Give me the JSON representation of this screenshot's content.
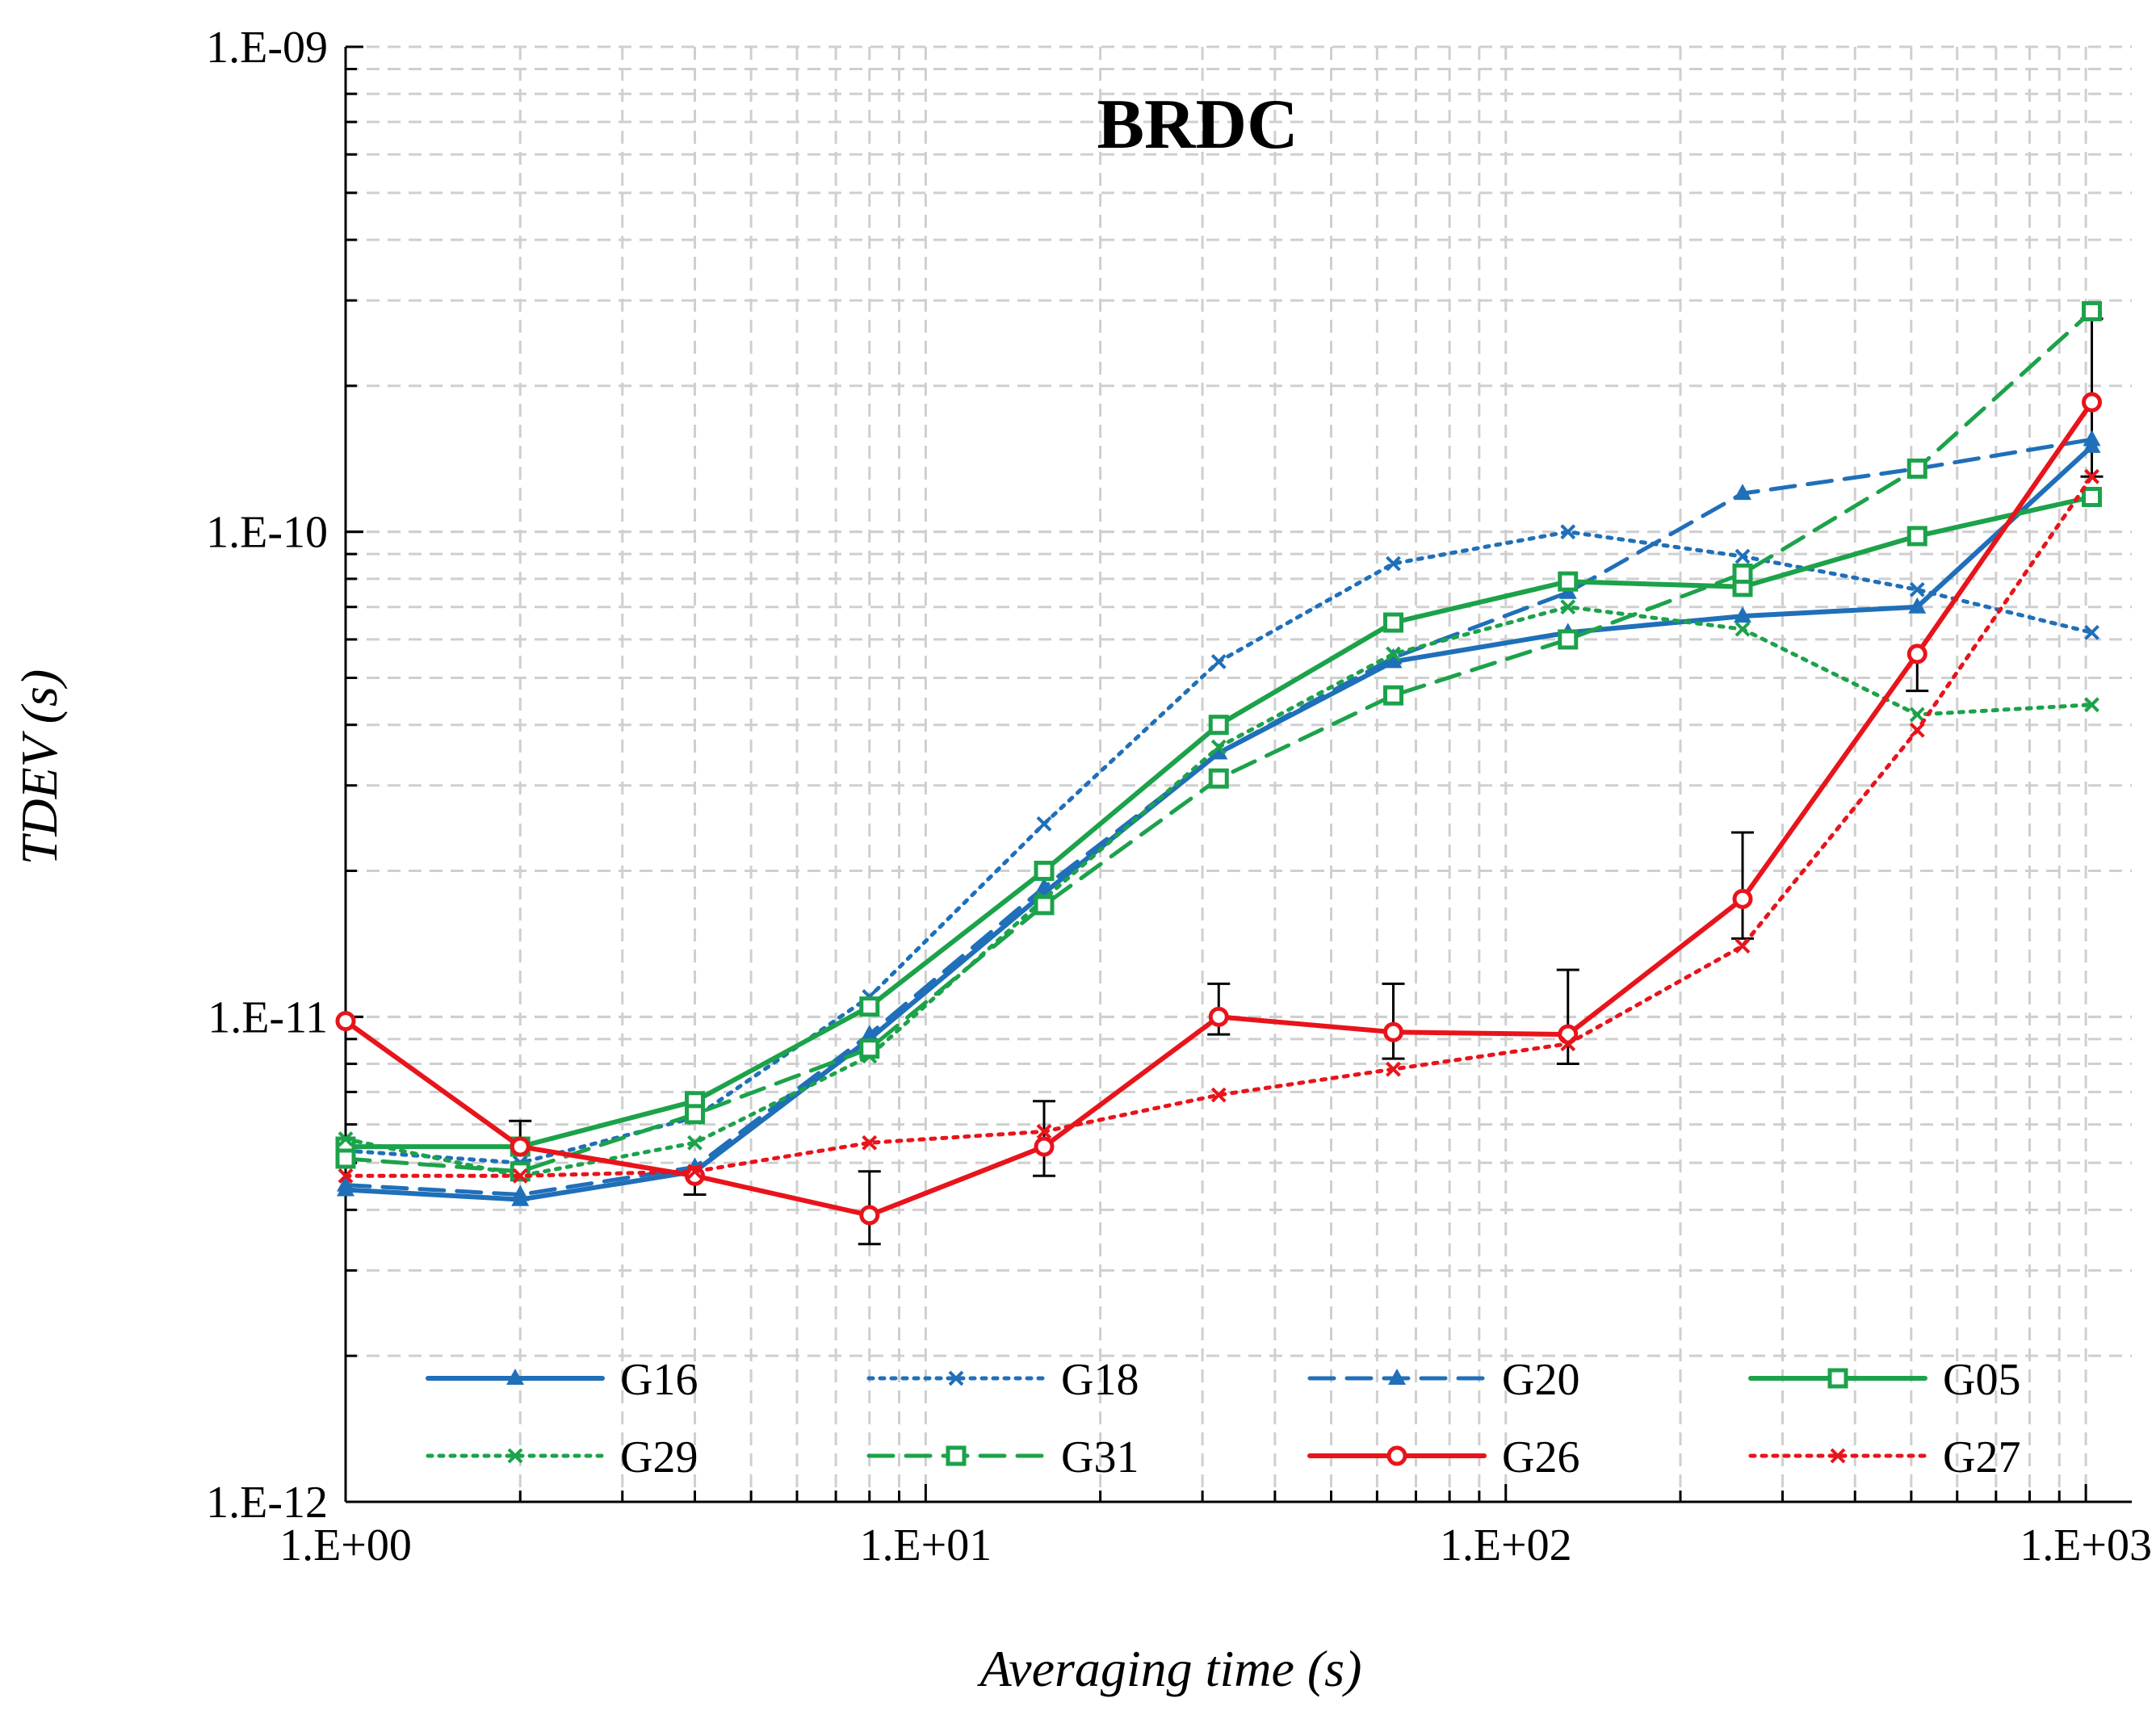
{
  "chart_data": {
    "type": "line",
    "title": "BRDC",
    "xlabel": "Averaging time (s)",
    "ylabel": "TDEV (s)",
    "xscale": "log",
    "yscale": "log",
    "xlim": [
      1,
      1200
    ],
    "ylim": [
      1e-12,
      1e-09
    ],
    "xticks": [
      {
        "value": 1,
        "label": "1.E+00"
      },
      {
        "value": 10,
        "label": "1.E+01"
      },
      {
        "value": 100,
        "label": "1.E+02"
      },
      {
        "value": 1000,
        "label": "1.E+03"
      }
    ],
    "yticks": [
      {
        "value": 1e-12,
        "label": "1.E-12"
      },
      {
        "value": 1e-11,
        "label": "1.E-11"
      },
      {
        "value": 1e-10,
        "label": "1.E-10"
      },
      {
        "value": 1e-09,
        "label": "1.E-09"
      }
    ],
    "grid": true,
    "legend_position": "bottom",
    "x": [
      1,
      2,
      4,
      8,
      16,
      32,
      64,
      128,
      256,
      512,
      1024
    ],
    "series": [
      {
        "name": "G16",
        "color": "#1f6fb9",
        "dash": "solid",
        "marker": "triangle",
        "values": [
          4.4e-12,
          4.2e-12,
          4.8e-12,
          9e-12,
          1.8e-11,
          3.5e-11,
          5.4e-11,
          6.2e-11,
          6.7e-11,
          7e-11,
          1.5e-10
        ]
      },
      {
        "name": "G18",
        "color": "#1f6fb9",
        "dash": "dotted",
        "marker": "cross",
        "values": [
          5.3e-12,
          5e-12,
          6.2e-12,
          1.1e-11,
          2.5e-11,
          5.4e-11,
          8.6e-11,
          1e-10,
          8.9e-11,
          7.6e-11,
          6.2e-11
        ]
      },
      {
        "name": "G20",
        "color": "#1f6fb9",
        "dash": "dashed",
        "marker": "triangle",
        "values": [
          4.5e-12,
          4.3e-12,
          4.9e-12,
          9.2e-12,
          1.85e-11,
          3.5e-11,
          5.5e-11,
          7.5e-11,
          1.2e-10,
          1.35e-10,
          1.55e-10
        ]
      },
      {
        "name": "G05",
        "color": "#1ca24a",
        "dash": "solid",
        "marker": "square",
        "values": [
          5.4e-12,
          5.4e-12,
          6.7e-12,
          1.05e-11,
          2e-11,
          4e-11,
          6.5e-11,
          7.9e-11,
          7.7e-11,
          9.8e-11,
          1.18e-10
        ]
      },
      {
        "name": "G29",
        "color": "#1ca24a",
        "dash": "dotted",
        "marker": "cross",
        "values": [
          5.6e-12,
          4.7e-12,
          5.5e-12,
          8.3e-12,
          1.75e-11,
          3.6e-11,
          5.6e-11,
          7e-11,
          6.3e-11,
          4.2e-11,
          4.4e-11
        ]
      },
      {
        "name": "G31",
        "color": "#1ca24a",
        "dash": "dashed",
        "marker": "square",
        "values": [
          5.1e-12,
          4.8e-12,
          6.3e-12,
          8.6e-12,
          1.7e-11,
          3.1e-11,
          4.6e-11,
          6e-11,
          8.2e-11,
          1.35e-10,
          2.85e-10
        ]
      },
      {
        "name": "G26",
        "color": "#e8141b",
        "dash": "solid",
        "marker": "circle",
        "values": [
          9.8e-12,
          5.4e-12,
          4.7e-12,
          3.9e-12,
          5.4e-12,
          1e-11,
          9.3e-12,
          9.2e-12,
          1.75e-11,
          5.6e-11,
          1.85e-10
        ],
        "error_upper": [
          null,
          6.1e-12,
          null,
          4.8e-12,
          6.7e-12,
          1.17e-11,
          1.17e-11,
          1.25e-11,
          2.4e-11,
          null,
          2.75e-10
        ],
        "error_lower": [
          null,
          null,
          4.3e-12,
          3.4e-12,
          4.7e-12,
          9.2e-12,
          8.2e-12,
          8e-12,
          1.45e-11,
          4.7e-11,
          1.3e-10
        ]
      },
      {
        "name": "G27",
        "color": "#e8141b",
        "dash": "dotted",
        "marker": "cross",
        "values": [
          4.7e-12,
          4.7e-12,
          4.8e-12,
          5.5e-12,
          5.8e-12,
          6.9e-12,
          7.8e-12,
          8.8e-12,
          1.4e-11,
          3.9e-11,
          1.3e-10
        ]
      }
    ]
  }
}
